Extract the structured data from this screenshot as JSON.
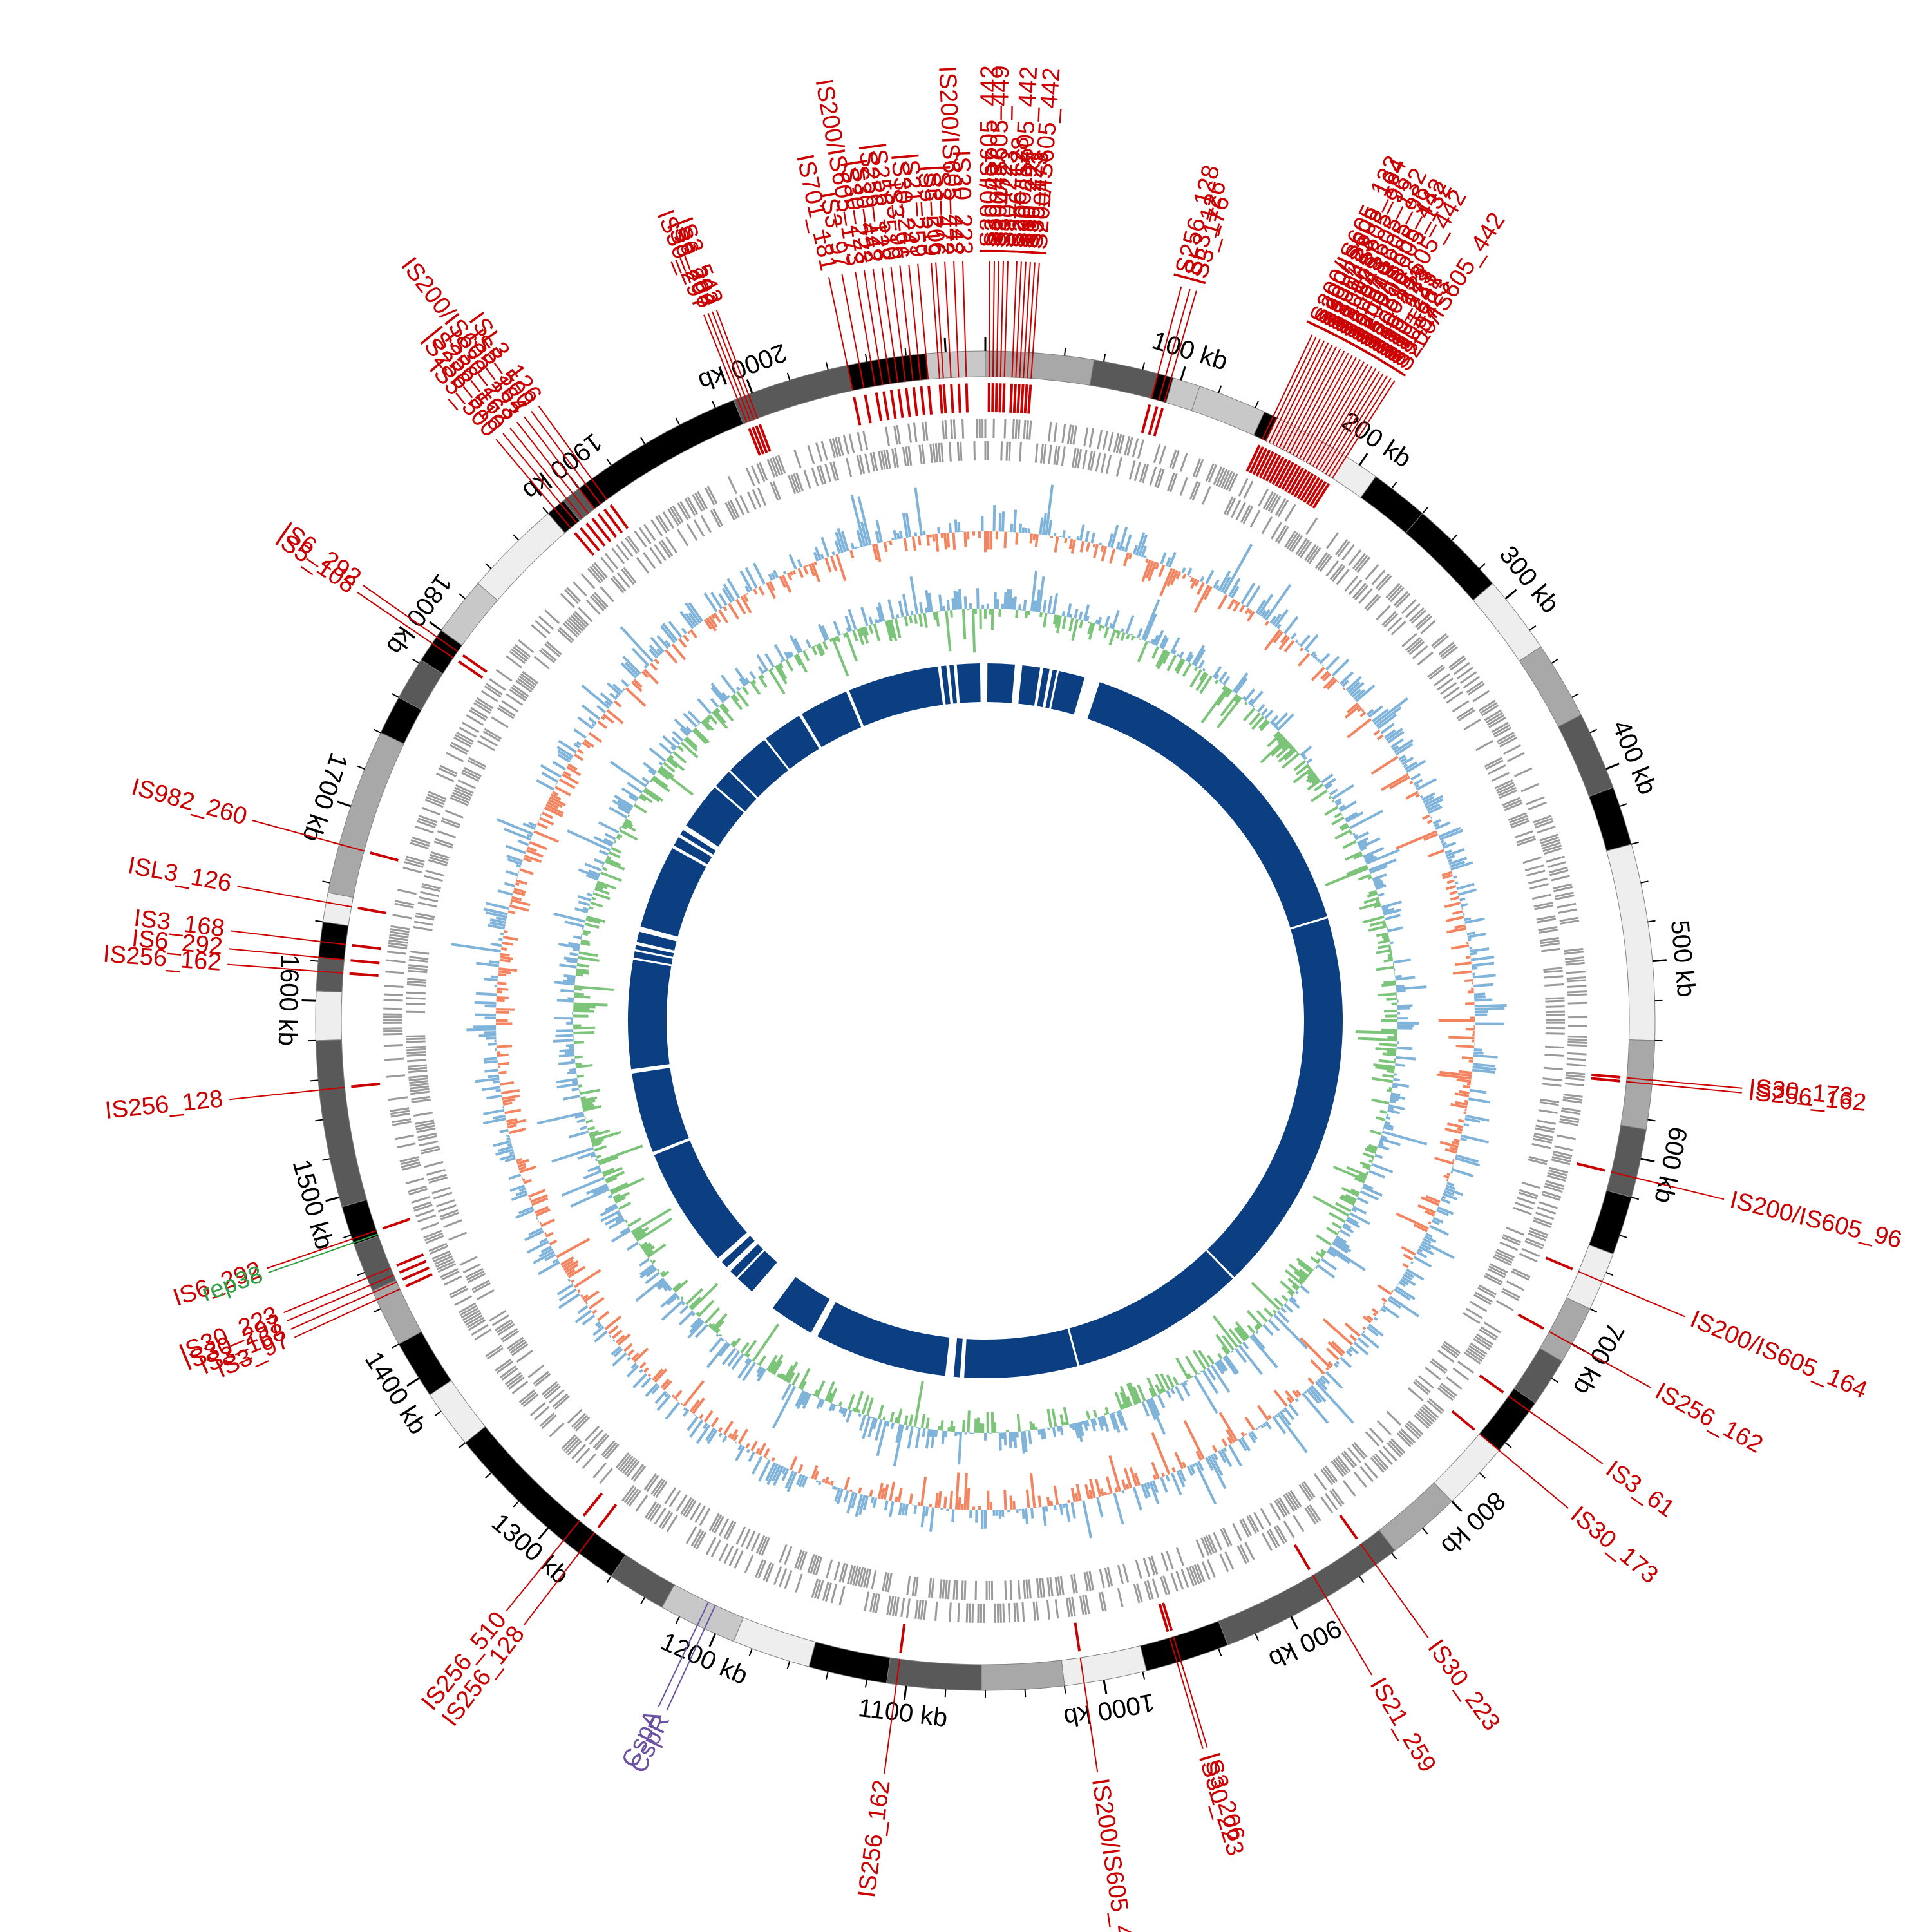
{
  "colors": {
    "is_element": "#cc0000",
    "repeat": "#2ea043",
    "gene_of_interest": "#6a51a3",
    "gene_track": "#9a9a9a",
    "gc_positive": "#7fb3d9",
    "gc_negative": "#f4845f",
    "gc_skew_positive": "#7fb3d9",
    "gc_skew_negative": "#7cc47a",
    "blocks": "#0b3f82",
    "contig_shades": [
      "#000000",
      "#595959",
      "#a8a8a8",
      "#c8c8c8",
      "#eeeeee"
    ]
  },
  "genome": {
    "length_kb": 2120
  },
  "ticks": [
    "100 kb",
    "200 kb",
    "300 kb",
    "400 kb",
    "500 kb",
    "600 kb",
    "700 kb",
    "800 kb",
    "900 kb",
    "1000 kb",
    "1100 kb",
    "1200 kb",
    "1300 kb",
    "1400 kb",
    "1500 kb",
    "1600 kb",
    "1700 kb",
    "1800 kb",
    "1900 kb",
    "2000 kb"
  ],
  "tick_positions_kb": [
    100,
    200,
    300,
    400,
    500,
    600,
    700,
    800,
    900,
    1000,
    1100,
    1200,
    1300,
    1400,
    1500,
    1600,
    1700,
    1800,
    1900,
    2000
  ],
  "is_labels": [
    {
      "text": "IS200/IS605_442",
      "pos": 2
    },
    {
      "text": "IS30_297",
      "pos": 4
    },
    {
      "text": "IS200/IS605_449",
      "pos": 6
    },
    {
      "text": "IS3_472",
      "pos": 8
    },
    {
      "text": "IS30_223",
      "pos": 10
    },
    {
      "text": "IS256_128",
      "pos": 14
    },
    {
      "text": "IS200/IS605_442",
      "pos": 16
    },
    {
      "text": "IS30_297",
      "pos": 18
    },
    {
      "text": "IS30_223",
      "pos": 20
    },
    {
      "text": "IS30_173",
      "pos": 22
    },
    {
      "text": "IS200/IS605_442",
      "pos": 24
    },
    {
      "text": "IS256_128",
      "pos": 88
    },
    {
      "text": "ISL3_126",
      "pos": 92
    },
    {
      "text": "IS3_176",
      "pos": 95
    },
    {
      "text": "IS200/IS605_132",
      "pos": 150
    },
    {
      "text": "IS200/IS605_164",
      "pos": 152
    },
    {
      "text": "IS30_223",
      "pos": 154
    },
    {
      "text": "IS200/IS605_96",
      "pos": 156
    },
    {
      "text": "IS3_168",
      "pos": 158
    },
    {
      "text": "IS200/IS605_132",
      "pos": 160
    },
    {
      "text": "IS3_543",
      "pos": 162
    },
    {
      "text": "IS200/IS605_96",
      "pos": 164
    },
    {
      "text": "IS5_519",
      "pos": 166
    },
    {
      "text": "IS200/IS605_442",
      "pos": 168
    },
    {
      "text": "IS200/IS605_132",
      "pos": 170
    },
    {
      "text": "IS3_206",
      "pos": 172
    },
    {
      "text": "IS5_519",
      "pos": 174
    },
    {
      "text": "IS200/IS605_442",
      "pos": 176
    },
    {
      "text": "IS30_223",
      "pos": 178
    },
    {
      "text": "IS30_173",
      "pos": 180
    },
    {
      "text": "IS30_223",
      "pos": 182
    },
    {
      "text": "IS30_241",
      "pos": 184
    },
    {
      "text": "IS3_168",
      "pos": 186
    },
    {
      "text": "IS30_223",
      "pos": 188
    },
    {
      "text": "IS3_97",
      "pos": 190
    },
    {
      "text": "IS200/IS605_442",
      "pos": 192
    },
    {
      "text": "IS30_173",
      "pos": 560
    },
    {
      "text": "IS256_162",
      "pos": 562
    },
    {
      "text": "IS200/IS605_96",
      "pos": 610
    },
    {
      "text": "IS200/IS605_164",
      "pos": 665
    },
    {
      "text": "IS256_162",
      "pos": 700
    },
    {
      "text": "IS3_61",
      "pos": 740
    },
    {
      "text": "IS30_173",
      "pos": 765
    },
    {
      "text": "IS30_223",
      "pos": 850
    },
    {
      "text": "IS21_259",
      "pos": 880
    },
    {
      "text": "IS3_206",
      "pos": 960
    },
    {
      "text": "IS30_223",
      "pos": 962
    },
    {
      "text": "IS200/IS605_442",
      "pos": 1010
    },
    {
      "text": "IS256_162",
      "pos": 1105
    },
    {
      "text": "IS256_128",
      "pos": 1280
    },
    {
      "text": "IS256_510",
      "pos": 1290
    },
    {
      "text": "IS3_97",
      "pos": 1445
    },
    {
      "text": "IS3_168",
      "pos": 1449
    },
    {
      "text": "IS30_297",
      "pos": 1453
    },
    {
      "text": "IS30_223",
      "pos": 1457
    },
    {
      "text": "IS6_292",
      "pos": 1478
    },
    {
      "text": "IS256_128",
      "pos": 1555
    },
    {
      "text": "IS256_162",
      "pos": 1615
    },
    {
      "text": "IS6_292",
      "pos": 1622
    },
    {
      "text": "IS3_168",
      "pos": 1630
    },
    {
      "text": "ISL3_126",
      "pos": 1650
    },
    {
      "text": "IS982_260",
      "pos": 1680
    },
    {
      "text": "IS5_108",
      "pos": 1792
    },
    {
      "text": "IS6_292",
      "pos": 1796
    },
    {
      "text": "IS5_500",
      "pos": 1884
    },
    {
      "text": "IS256_510",
      "pos": 1888
    },
    {
      "text": "IS256_162",
      "pos": 1892
    },
    {
      "text": "IS30_223",
      "pos": 1896
    },
    {
      "text": "IS200/IS605_164",
      "pos": 1900
    },
    {
      "text": "IS5_500",
      "pos": 1904
    },
    {
      "text": "ISL3_126",
      "pos": 1908
    },
    {
      "text": "IS30_297",
      "pos": 1992
    },
    {
      "text": "IS3_206",
      "pos": 1994
    },
    {
      "text": "IS6_292",
      "pos": 1996
    },
    {
      "text": "IS3_543",
      "pos": 1998
    },
    {
      "text": "IS701_181",
      "pos": 2050
    },
    {
      "text": "IS3_97",
      "pos": 2056
    },
    {
      "text": "IS200/IS605_173",
      "pos": 2062
    },
    {
      "text": "IS30_223",
      "pos": 2066
    },
    {
      "text": "IS30_442",
      "pos": 2070
    },
    {
      "text": "IS256_128",
      "pos": 2074
    },
    {
      "text": "IS256_510",
      "pos": 2078
    },
    {
      "text": "IS3_96",
      "pos": 2082
    },
    {
      "text": "IS30_241",
      "pos": 2086
    },
    {
      "text": "IS21_259",
      "pos": 2090
    },
    {
      "text": "IS5_519",
      "pos": 2096
    },
    {
      "text": "IS3_206",
      "pos": 2098
    },
    {
      "text": "IS3_472",
      "pos": 2102
    },
    {
      "text": "IS200/IS605_442",
      "pos": 2106
    },
    {
      "text": "IS30_223",
      "pos": 2110
    }
  ],
  "other_labels": [
    {
      "text": "rep38",
      "pos": 1476,
      "kind": "repeat"
    },
    {
      "text": "CspA",
      "pos": 1210,
      "kind": "gene"
    },
    {
      "text": "CspR",
      "pos": 1206,
      "kind": "gene"
    }
  ],
  "contigs_kb": [
    [
      0,
      55
    ],
    [
      55,
      88
    ],
    [
      88,
      96
    ],
    [
      96,
      110
    ],
    [
      110,
      145
    ],
    [
      145,
      152
    ],
    [
      152,
      210
    ],
    [
      210,
      240
    ],
    [
      240,
      290
    ],
    [
      290,
      330
    ],
    [
      330,
      370
    ],
    [
      370,
      410
    ],
    [
      410,
      440
    ],
    [
      440,
      540
    ],
    [
      540,
      585
    ],
    [
      585,
      620
    ],
    [
      620,
      650
    ],
    [
      650,
      680
    ],
    [
      680,
      710
    ],
    [
      710,
      735
    ],
    [
      735,
      765
    ],
    [
      765,
      800
    ],
    [
      800,
      838
    ],
    [
      838,
      935
    ],
    [
      935,
      978
    ],
    [
      978,
      1020
    ],
    [
      1020,
      1062
    ],
    [
      1062,
      1110
    ],
    [
      1110,
      1150
    ],
    [
      1150,
      1190
    ],
    [
      1190,
      1230
    ],
    [
      1230,
      1260
    ],
    [
      1260,
      1360
    ],
    [
      1360,
      1390
    ],
    [
      1390,
      1420
    ],
    [
      1420,
      1450
    ],
    [
      1450,
      1475
    ],
    [
      1475,
      1495
    ],
    [
      1495,
      1580
    ],
    [
      1580,
      1605
    ],
    [
      1605,
      1622
    ],
    [
      1622,
      1640
    ],
    [
      1640,
      1655
    ],
    [
      1655,
      1740
    ],
    [
      1740,
      1760
    ],
    [
      1760,
      1782
    ],
    [
      1782,
      1800
    ],
    [
      1800,
      1830
    ],
    [
      1830,
      1880
    ],
    [
      1880,
      1890
    ],
    [
      1890,
      1900
    ],
    [
      1900,
      1908
    ],
    [
      1908,
      1990
    ],
    [
      1990,
      2050
    ],
    [
      2050,
      2090
    ],
    [
      2090,
      2120
    ]
  ],
  "contig_shade_index": [
    2,
    1,
    0,
    3,
    3,
    0,
    4,
    0,
    0,
    4,
    2,
    1,
    0,
    4,
    2,
    1,
    0,
    4,
    2,
    1,
    0,
    4,
    2,
    1,
    0,
    4,
    2,
    1,
    0,
    4,
    3,
    1,
    0,
    4,
    0,
    2,
    1,
    0,
    1,
    4,
    1,
    0,
    4,
    2,
    0,
    1,
    0,
    3,
    4,
    0,
    1,
    0,
    0,
    1,
    0,
    3
  ],
  "blocks_kb": [
    [
      2,
      28
    ],
    [
      35,
      52
    ],
    [
      55,
      61
    ],
    [
      64,
      68
    ],
    [
      70,
      95
    ],
    [
      110,
      430
    ],
    [
      432,
      800
    ],
    [
      802,
      970
    ],
    [
      972,
      1080
    ],
    [
      1084,
      1090
    ],
    [
      1098,
      1225
    ],
    [
      1232,
      1275
    ],
    [
      1300,
      1318
    ],
    [
      1320,
      1328
    ],
    [
      1333,
      1340
    ],
    [
      1345,
      1460
    ],
    [
      1463,
      1540
    ],
    [
      1544,
      1648
    ],
    [
      1650,
      1656
    ],
    [
      1658,
      1662
    ],
    [
      1665,
      1675
    ],
    [
      1680,
      1760
    ],
    [
      1763,
      1772
    ],
    [
      1775,
      1780
    ],
    [
      1785,
      1830
    ],
    [
      1832,
      1850
    ],
    [
      1852,
      1895
    ],
    [
      1897,
      1935
    ],
    [
      1938,
      1985
    ],
    [
      1988,
      2075
    ],
    [
      2078,
      2083
    ],
    [
      2086,
      2090
    ],
    [
      2093,
      2115
    ]
  ]
}
